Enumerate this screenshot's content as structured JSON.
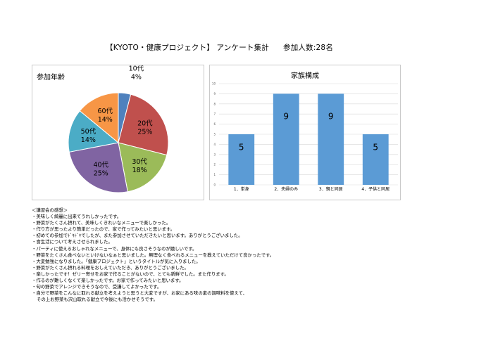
{
  "header": {
    "title": "【KYOTO・健康プロジェクト】 アンケート集計",
    "participants": "参加人数:28名"
  },
  "age_chart_title": "参加年齢",
  "family_chart_title": "家族構成",
  "chart_data": [
    {
      "type": "pie",
      "title": "参加年齢",
      "slices": [
        {
          "label": "10代",
          "value": 4,
          "pct": "4%",
          "color": "#4f81bd"
        },
        {
          "label": "20代",
          "value": 25,
          "pct": "25%",
          "color": "#c0504d"
        },
        {
          "label": "30代",
          "value": 18,
          "pct": "18%",
          "color": "#9bbb59"
        },
        {
          "label": "40代",
          "value": 25,
          "pct": "25%",
          "color": "#8064a2"
        },
        {
          "label": "50代",
          "value": 14,
          "pct": "14%",
          "color": "#4bacc6"
        },
        {
          "label": "60代",
          "value": 14,
          "pct": "14%",
          "color": "#f79646"
        }
      ]
    },
    {
      "type": "bar",
      "title": "家族構成",
      "categories": [
        "1．単身",
        "2．夫婦のみ",
        "3．親と同居",
        "4．子供と同居"
      ],
      "values": [
        5,
        9,
        9,
        5
      ],
      "ylim": [
        0,
        10
      ],
      "yticks": [
        "0",
        "1",
        "2",
        "3",
        "4",
        "5",
        "6",
        "7",
        "8",
        "9",
        "10"
      ],
      "color": "#5b9bd5",
      "grid": true
    }
  ],
  "comments": {
    "heading": "＜講習会の感想＞",
    "lines": [
      "・美味しく綺麗に出来てうれしかったです。",
      "・野菜がたくさん摂れて、美味しくきれいなメニューで楽しかった。",
      "・作り方が思ったより簡単だったので、家で作ってみたいと思います。",
      "・初めての参加でﾄﾞｷﾄﾞｷでしたが、また参加させていただきたいと思います。ありがとうございました。",
      "・食生活について考えさせられました。",
      "・パーティに使えるおしゃれなメニューで、身体にも良さそうなのが嬉しいです。",
      "・野菜をたくさん食べないといけないなぁと思いました。無理なく食べれるメニューを教えていただけて良かったです。",
      "・大変勉強になりました。「健康プロジェクト」というタイトルが気に入りました。",
      "・野菜がたくさん摂れる料理をおしえていただき、ありがとうございました。",
      "・楽しかったです！ゼリー寄せをお家で作ることがないので、とても新鮮でした。また作ります。",
      "・作るのが難しくなくて楽しかったです。お家で作ってみたいと思います。",
      "・旬の野菜でアレンジできそうなので、受講してよかったです。",
      "・自分で野菜をこんなに取れる献立を考えようと思うと大変ですが、お家にある味の素の調味料を使えて、",
      "その上お野菜も沢山取れる献立で今後にも活かせそうです。"
    ]
  }
}
